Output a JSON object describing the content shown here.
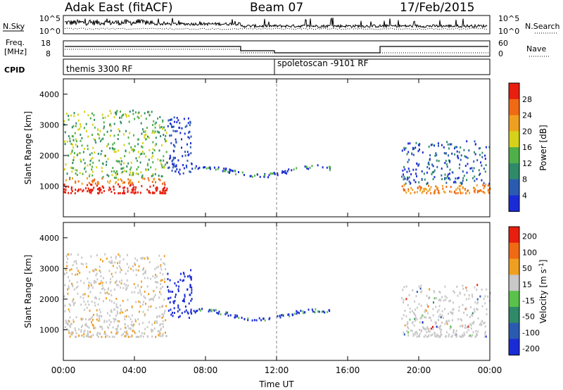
{
  "header": {
    "station": "Adak East (fitACF)",
    "beam": "Beam 07",
    "date": "17/Feb/2015"
  },
  "side_labels": {
    "nsky": "N.Sky",
    "nsearch": "N.Search",
    "freq": "Freq.",
    "freq_unit": "[MHz]",
    "nave": "Nave",
    "cpid": "CPID"
  },
  "noise_axis": {
    "top": "10^5",
    "bottom": "10^0"
  },
  "freq_axis": {
    "top": "18",
    "bottom": "8"
  },
  "nave_axis": {
    "top": "60",
    "bottom": "0"
  },
  "cpid_labels": [
    "themis 3300 RF",
    "spoletoscan -9101 RF"
  ],
  "chart_data": [
    {
      "type": "heatmap",
      "title": "",
      "ylabel": "Slant Range [km]",
      "xlabel": "",
      "xlim_hours": [
        0,
        24
      ],
      "ylim": [
        0,
        4500
      ],
      "yticks": [
        "1000",
        "2000",
        "3000",
        "4000"
      ],
      "colorbar": {
        "label": "Power [dB]",
        "ticks": [
          "4",
          "8",
          "12",
          "16",
          "20",
          "24",
          "28"
        ],
        "colors": [
          "#1a2bd6",
          "#2a5bb0",
          "#2f8a6a",
          "#4fb04a",
          "#d6d21a",
          "#f0a020",
          "#f06a14",
          "#e81e0e"
        ]
      },
      "regions": [
        {
          "t_start": 0.0,
          "t_end": 5.8,
          "r_low": 800,
          "r_high": 3500,
          "dominant": "green/red scatter"
        },
        {
          "t_start": 5.8,
          "t_end": 7.2,
          "r_low": 1400,
          "r_high": 3300,
          "dominant": "blue"
        },
        {
          "t_start": 7.2,
          "t_end": 15.0,
          "r_low": 1400,
          "r_high": 1700,
          "dominant": "blue/green"
        },
        {
          "t_start": 19.0,
          "t_end": 24.0,
          "r_low": 800,
          "r_high": 2500,
          "dominant": "blue/green/orange"
        }
      ]
    },
    {
      "type": "heatmap",
      "title": "",
      "ylabel": "Slant Range [km]",
      "xlabel": "Time UT",
      "xticks": [
        "00:00",
        "04:00",
        "08:00",
        "12:00",
        "16:00",
        "20:00",
        "00:00"
      ],
      "xlim_hours": [
        0,
        24
      ],
      "ylim": [
        0,
        4500
      ],
      "yticks": [
        "1000",
        "2000",
        "3000",
        "4000"
      ],
      "colorbar": {
        "label": "Velocity [m s^-1]",
        "ticks": [
          "200",
          "100",
          "50",
          "15",
          "-15",
          "-50",
          "-100",
          "-200"
        ],
        "colors": [
          "#1a2bd6",
          "#2a5bb0",
          "#2f8a6a",
          "#5ac24a",
          "#c8c8c8",
          "#f0a020",
          "#f06a14",
          "#e81e0e"
        ]
      },
      "regions": [
        {
          "t_start": 0.0,
          "t_end": 5.8,
          "r_low": 800,
          "r_high": 3500,
          "dominant": "grey/orange"
        },
        {
          "t_start": 5.8,
          "t_end": 7.2,
          "r_low": 1400,
          "r_high": 3000,
          "dominant": "blue"
        },
        {
          "t_start": 7.2,
          "t_end": 15.0,
          "r_low": 1400,
          "r_high": 1700,
          "dominant": "blue/green"
        },
        {
          "t_start": 19.0,
          "t_end": 24.0,
          "r_low": 800,
          "r_high": 2500,
          "dominant": "grey"
        }
      ]
    }
  ]
}
